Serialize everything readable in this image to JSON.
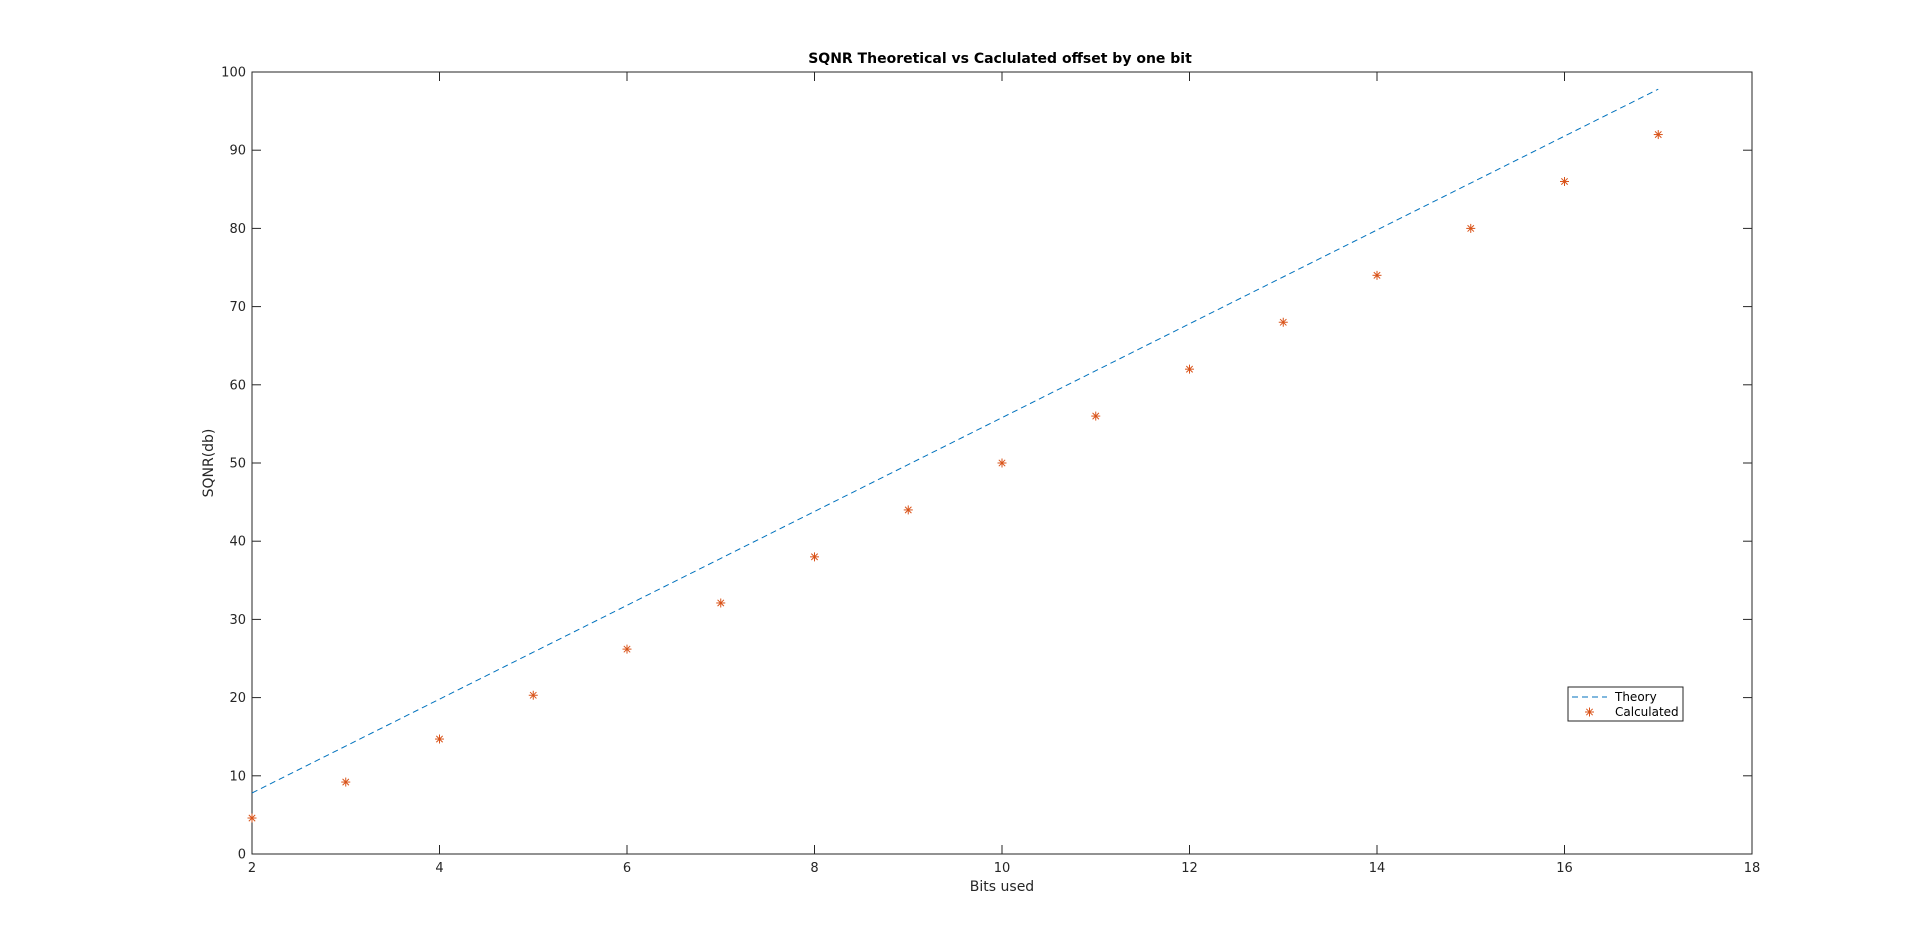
{
  "chart_data": {
    "type": "line",
    "title": "SQNR Theoretical vs Caclulated offset by one bit",
    "xlabel": "Bits used",
    "ylabel": "SQNR(db)",
    "xlim": [
      2,
      18
    ],
    "ylim": [
      0,
      100
    ],
    "xticks": [
      2,
      4,
      6,
      8,
      10,
      12,
      14,
      16,
      18
    ],
    "yticks": [
      0,
      10,
      20,
      30,
      40,
      50,
      60,
      70,
      80,
      90,
      100
    ],
    "grid": false,
    "legend_position": "lower-right",
    "series": [
      {
        "name": "Theory",
        "style": "dashed-line",
        "color": "#0072BD",
        "x": [
          2,
          3,
          4,
          5,
          6,
          7,
          8,
          9,
          10,
          11,
          12,
          13,
          14,
          15,
          16,
          17
        ],
        "values": [
          7.8,
          13.8,
          19.8,
          25.8,
          31.8,
          37.8,
          43.8,
          49.8,
          55.8,
          61.8,
          67.8,
          73.8,
          79.8,
          85.8,
          91.8,
          97.8
        ]
      },
      {
        "name": "Calculated",
        "style": "asterisk-markers",
        "color": "#D95319",
        "x": [
          2,
          3,
          4,
          5,
          6,
          7,
          8,
          9,
          10,
          11,
          12,
          13,
          14,
          15,
          16,
          17
        ],
        "values": [
          4.6,
          9.2,
          14.7,
          20.3,
          26.2,
          32.1,
          38.0,
          44.0,
          50.0,
          56.0,
          62.0,
          68.0,
          74.0,
          80.0,
          86.0,
          92.0
        ]
      }
    ]
  }
}
